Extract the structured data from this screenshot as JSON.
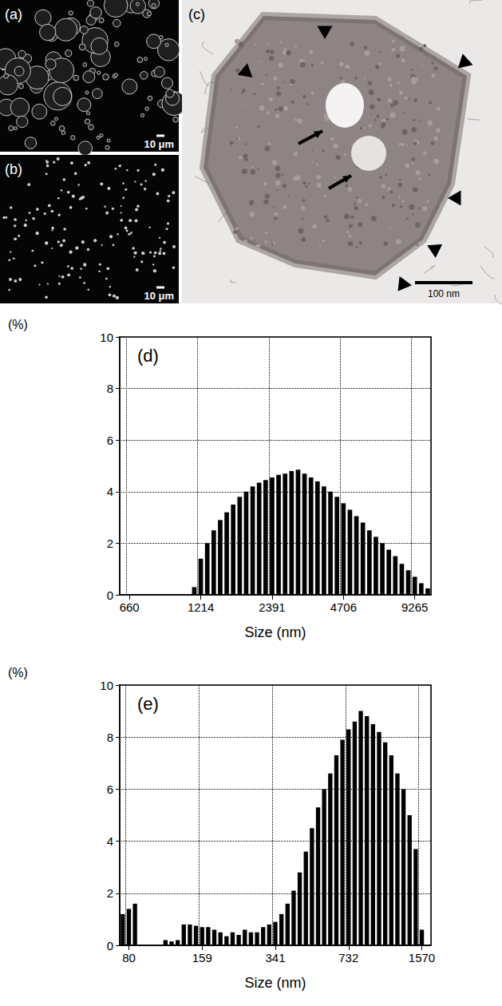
{
  "images": [
    {
      "label": "(a)",
      "scale_bar": "10 μm"
    },
    {
      "label": "(b)",
      "scale_bar": "10 μm"
    },
    {
      "label": "(c)",
      "scale_bar": "100 nm"
    }
  ],
  "chart_data": [
    {
      "type": "bar",
      "title": "(d)",
      "y_label": "(%)",
      "x_label": "Size (nm)",
      "categories": [
        null,
        "660",
        null,
        null,
        null,
        null,
        null,
        null,
        null,
        null,
        null,
        null,
        "1214",
        null,
        null,
        null,
        null,
        null,
        null,
        null,
        null,
        null,
        null,
        "2391",
        null,
        null,
        null,
        null,
        null,
        null,
        null,
        null,
        null,
        null,
        "4706",
        null,
        null,
        null,
        null,
        null,
        null,
        null,
        null,
        null,
        null,
        "9265",
        null,
        null
      ],
      "values": [
        0,
        0,
        0,
        0,
        0,
        0,
        0,
        0,
        0,
        0,
        0,
        0.3,
        1.4,
        2.0,
        2.5,
        2.9,
        3.2,
        3.5,
        3.8,
        4.0,
        4.2,
        4.35,
        4.45,
        4.55,
        4.65,
        4.7,
        4.8,
        4.85,
        4.7,
        4.55,
        4.4,
        4.2,
        4.0,
        3.8,
        3.55,
        3.3,
        3.05,
        2.8,
        2.5,
        2.25,
        2.0,
        1.75,
        1.5,
        1.2,
        0.95,
        0.7,
        0.45,
        0.25
      ],
      "color": "#000000",
      "ylim": [
        0,
        10
      ],
      "yticks": [
        0,
        2,
        4,
        6,
        8,
        10
      ],
      "grid": true
    },
    {
      "type": "bar",
      "title": "(e)",
      "y_label": "(%)",
      "x_label": "Size (nm)",
      "categories": [
        null,
        "80",
        null,
        null,
        null,
        null,
        null,
        null,
        null,
        null,
        null,
        null,
        null,
        "159",
        null,
        null,
        null,
        null,
        null,
        null,
        null,
        null,
        null,
        null,
        null,
        "341",
        null,
        null,
        null,
        null,
        null,
        null,
        null,
        null,
        null,
        null,
        null,
        "732",
        null,
        null,
        null,
        null,
        null,
        null,
        null,
        null,
        null,
        null,
        null,
        "1570",
        null
      ],
      "values": [
        1.2,
        1.4,
        1.6,
        0,
        0,
        0,
        0,
        0.2,
        0.15,
        0.2,
        0.8,
        0.8,
        0.75,
        0.7,
        0.7,
        0.6,
        0.5,
        0.35,
        0.5,
        0.4,
        0.6,
        0.5,
        0.5,
        0.7,
        0.8,
        0.9,
        1.2,
        1.6,
        2.1,
        2.8,
        3.6,
        4.5,
        5.3,
        6.0,
        6.6,
        7.3,
        7.9,
        8.3,
        8.6,
        9.0,
        8.8,
        8.5,
        8.2,
        7.8,
        7.3,
        6.6,
        6.0,
        5.0,
        3.7,
        0.6,
        0
      ],
      "color": "#000000",
      "ylim": [
        0,
        10
      ],
      "yticks": [
        0,
        2,
        4,
        6,
        8,
        10
      ],
      "grid": true
    }
  ]
}
